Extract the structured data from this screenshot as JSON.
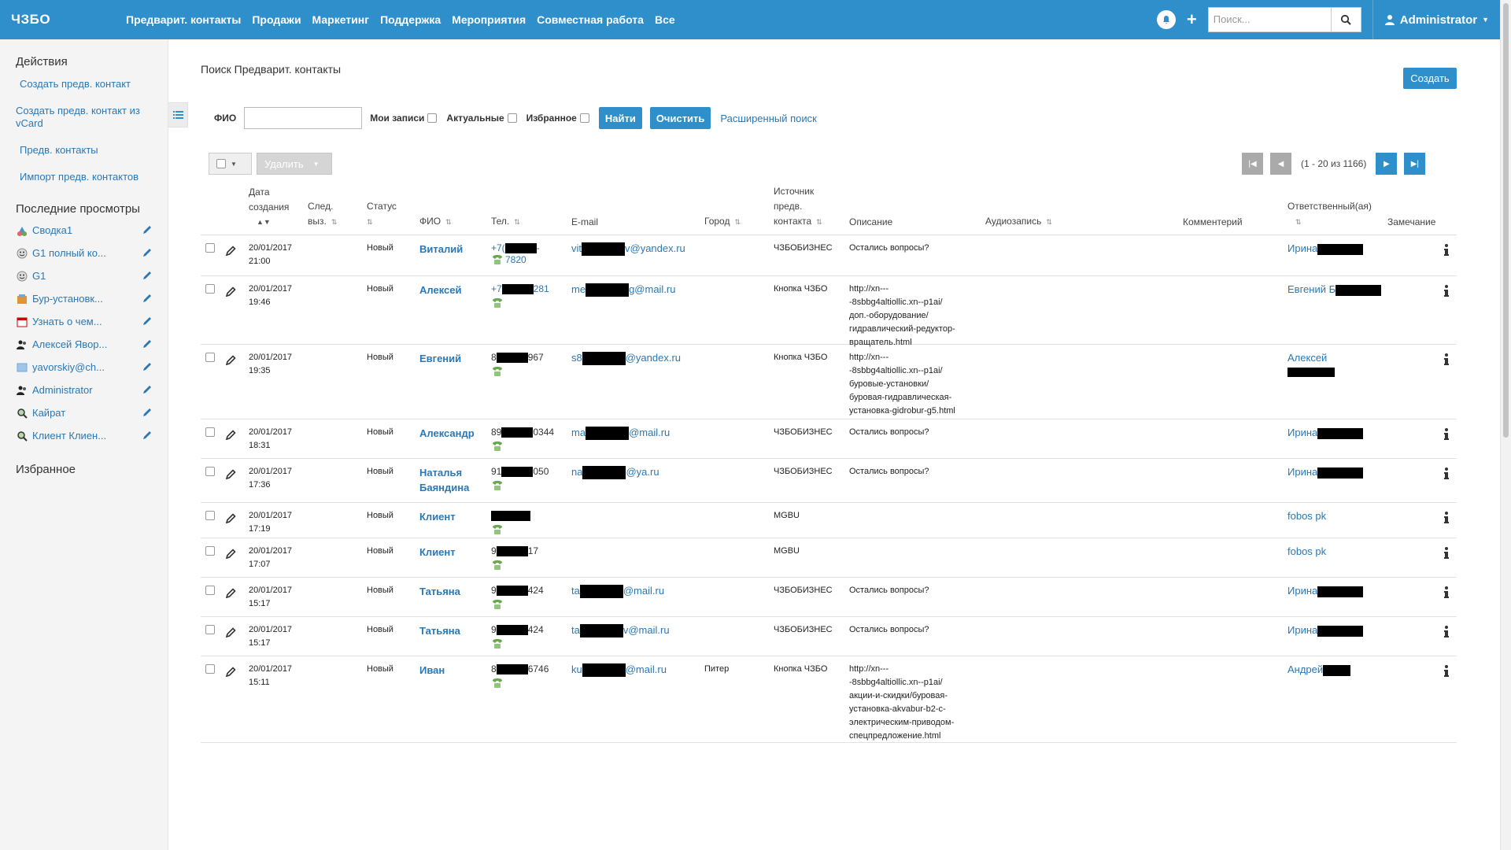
{
  "brand": "ЧЗБО",
  "nav": [
    "Предварит. контакты",
    "Продажи",
    "Маркетинг",
    "Поддержка",
    "Мероприятия",
    "Совместная работа",
    "Все"
  ],
  "search": {
    "placeholder": "Поиск..."
  },
  "user": "Administrator",
  "sidebar": {
    "actions_title": "Действия",
    "actions": [
      "Создать предв. контакт",
      "Создать предв. контакт из vCard",
      "Предв. контакты",
      "Импорт предв. контактов"
    ],
    "recent_title": "Последние просмотры",
    "recent": [
      {
        "label": "Сводка1",
        "icon": "dashboard-icon"
      },
      {
        "label": "G1 полный ко...",
        "icon": "smiley-icon"
      },
      {
        "label": "G1",
        "icon": "smiley-icon"
      },
      {
        "label": "Бур-установк...",
        "icon": "product-icon"
      },
      {
        "label": "Узнать о чем...",
        "icon": "calendar-icon"
      },
      {
        "label": "Алексей Явор...",
        "icon": "contact-icon"
      },
      {
        "label": "yavorskiy@ch...",
        "icon": "email-icon"
      },
      {
        "label": "Administrator",
        "icon": "user-icon"
      },
      {
        "label": "Кайрат",
        "icon": "lead-icon"
      },
      {
        "label": "Клиент Клиен...",
        "icon": "lead-icon"
      }
    ],
    "favorites_title": "Избранное"
  },
  "page_title": "Поиск Предварит. контакты",
  "create_label": "Создать",
  "filter": {
    "fio_label": "ФИО",
    "my_records": "Мои записи",
    "actual": "Актуальные",
    "favorites": "Избранное",
    "find": "Найти",
    "clear": "Очистить",
    "advanced": "Расширенный поиск"
  },
  "bulk": {
    "delete_label": "Удалить"
  },
  "pager": {
    "info": "(1 - 20 из 1166)"
  },
  "columns": {
    "date": [
      "Дата",
      "создания"
    ],
    "next": [
      "След.",
      "выз."
    ],
    "status": "Статус",
    "fio": "ФИО",
    "phone": "Тел.",
    "email": "E-mail",
    "city": "Город",
    "source": [
      "Источник",
      "предв.",
      "контакта"
    ],
    "desc": "Описание",
    "audio": "Аудиозапись",
    "comment": "Комментерий",
    "resp": "Ответственный(ая)",
    "note": "Замечание"
  },
  "rows": [
    {
      "date": "20/01/2017",
      "time": "21:00",
      "status": "Новый",
      "name": "Виталий",
      "phone_a": "+7(",
      "phone_b": "-",
      "phone_line2": "7820",
      "phone_blue": true,
      "email_a": "vit",
      "email_b": "v@yandex.ru",
      "city": "",
      "source": "ЧЗБОБИЗНЕС",
      "desc": "Остались вопросы?",
      "resp": "Ирина",
      "height": 52
    },
    {
      "date": "20/01/2017",
      "time": "19:46",
      "status": "Новый",
      "name": "Алексей",
      "phone_a": "+7",
      "phone_b": "281",
      "phone_line2": "",
      "phone_blue": true,
      "email_a": "me",
      "email_b": "g@mail.ru",
      "city": "",
      "source": "Кнопка ЧЗБО",
      "desc": "http://xn---\n-8sbbg4altiollic.xn--p1ai/\nдоп.-оборудование/\nгидравлический-редуктор-\nвращатель.html",
      "resp": "Евгений Б",
      "height": 87
    },
    {
      "date": "20/01/2017",
      "time": "19:35",
      "status": "Новый",
      "name": "Евгений",
      "phone_a": "8",
      "phone_b": "967",
      "phone_line2": "",
      "phone_blue": false,
      "email_a": "s8",
      "email_b": "@yandex.ru",
      "city": "",
      "source": "Кнопка ЧЗБО",
      "desc": "http://xn---\n-8sbbg4altiollic.xn--p1ai/\nбуровые-установки/\nбуровая-гидравлическая-\nустановка-gidrobur-g5.html",
      "resp": "Алексей",
      "height": 95
    },
    {
      "date": "20/01/2017",
      "time": "18:31",
      "status": "Новый",
      "name": "Александр",
      "phone_a": "89",
      "phone_b": "0344",
      "phone_line2": "",
      "phone_blue": false,
      "email_a": "ma",
      "email_b": "@mail.ru",
      "city": "",
      "source": "ЧЗБОБИЗНЕС",
      "desc": "Остались вопросы?",
      "resp": "Ирина",
      "height": 50
    },
    {
      "date": "20/01/2017",
      "time": "17:36",
      "status": "Новый",
      "name": "Наталья\nБаяндина",
      "phone_a": "91",
      "phone_b": "050",
      "phone_line2": "",
      "phone_blue": false,
      "email_a": "na",
      "email_b": "@ya.ru",
      "city": "",
      "source": "ЧЗБОБИЗНЕС",
      "desc": "Остались вопросы?",
      "resp": "Ирина",
      "height": 56
    },
    {
      "date": "20/01/2017",
      "time": "17:19",
      "status": "Новый",
      "name": "Клиент",
      "phone_a": "",
      "phone_b": "",
      "phone_line2": "",
      "phone_blue": false,
      "email_a": "",
      "email_b": "",
      "city": "",
      "source": "MGBU",
      "desc": "",
      "resp": "fobos pk",
      "height": 45
    },
    {
      "date": "20/01/2017",
      "time": "17:07",
      "status": "Новый",
      "name": "Клиент",
      "phone_a": "9",
      "phone_b": "17",
      "phone_line2": "",
      "phone_blue": false,
      "email_a": "",
      "email_b": "",
      "city": "",
      "source": "MGBU",
      "desc": "",
      "resp": "fobos pk",
      "height": 50
    },
    {
      "date": "20/01/2017",
      "time": "15:17",
      "status": "Новый",
      "name": "Татьяна",
      "phone_a": "9",
      "phone_b": "424",
      "phone_line2": "",
      "phone_blue": false,
      "email_a": "ta",
      "email_b": "@mail.ru",
      "city": "",
      "source": "ЧЗБОБИЗНЕС",
      "desc": "Остались вопросы?",
      "resp": "Ирина",
      "height": 50
    },
    {
      "date": "20/01/2017",
      "time": "15:17",
      "status": "Новый",
      "name": "Татьяна",
      "phone_a": "9",
      "phone_b": "424",
      "phone_line2": "",
      "phone_blue": false,
      "email_a": "ta",
      "email_b": "v@mail.ru",
      "city": "",
      "source": "ЧЗБОБИЗНЕС",
      "desc": "Остались вопросы?",
      "resp": "Ирина",
      "height": 50
    },
    {
      "date": "20/01/2017",
      "time": "15:11",
      "status": "Новый",
      "name": "Иван",
      "phone_a": "8",
      "phone_b": "6746",
      "phone_line2": "",
      "phone_blue": false,
      "email_a": "ku",
      "email_b": "@mail.ru",
      "city": "Питер",
      "source": "Кнопка ЧЗБО",
      "desc": "http://xn---\n-8sbbg4altiollic.xn--p1ai/\nакции-и-скидки/буровая-\nустановка-akvabur-b2-c-\nэлектрическим-приводом-\nспецпредложение.html",
      "resp": "Андрей",
      "height": 110
    }
  ],
  "colors": {
    "primary": "#2e8fcb",
    "link": "#2a78b5",
    "sidebar_bg": "#f4f4f4"
  }
}
